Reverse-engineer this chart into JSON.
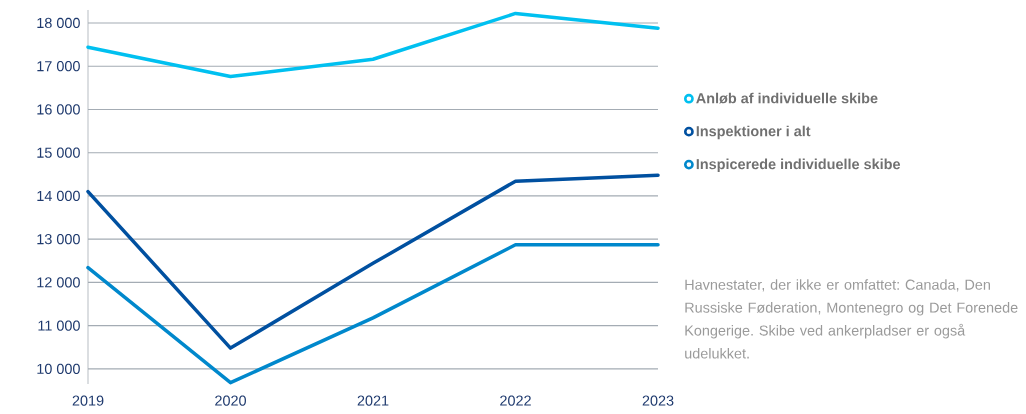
{
  "chart_data": {
    "type": "line",
    "categories": [
      "2019",
      "2020",
      "2021",
      "2022",
      "2023"
    ],
    "series": [
      {
        "name": "Anløb af individuelle skibe",
        "color": "#00c0f0",
        "values": [
          17440,
          16760,
          17160,
          18220,
          17880
        ]
      },
      {
        "name": "Inspektioner i alt",
        "color": "#0050a0",
        "values": [
          14100,
          10480,
          12440,
          14340,
          14480
        ]
      },
      {
        "name": "Inspicerede individuelle skibe",
        "color": "#0088cc",
        "values": [
          12340,
          9680,
          11180,
          12870,
          12870
        ]
      }
    ],
    "ylim": [
      9650,
      18300
    ],
    "yticks": [
      {
        "value": 10000,
        "label": "10 000"
      },
      {
        "value": 11000,
        "label": "11 000"
      },
      {
        "value": 12000,
        "label": "12 000"
      },
      {
        "value": 13000,
        "label": "13 000"
      },
      {
        "value": 14000,
        "label": "14 000"
      },
      {
        "value": 15000,
        "label": "15 000"
      },
      {
        "value": 16000,
        "label": "16 000"
      },
      {
        "value": 17000,
        "label": "17 000"
      },
      {
        "value": 18000,
        "label": "18 000"
      }
    ],
    "grid": "y",
    "legend": "right",
    "marker": "none",
    "line_style": "solid",
    "annotations": [
      "Havnestater, der ikke er omfattet: Canada, Den Russiske Føderation, Montenegro og Det Forenede Kongerige. Skibe ved ankerpladser er også udelukket."
    ]
  }
}
